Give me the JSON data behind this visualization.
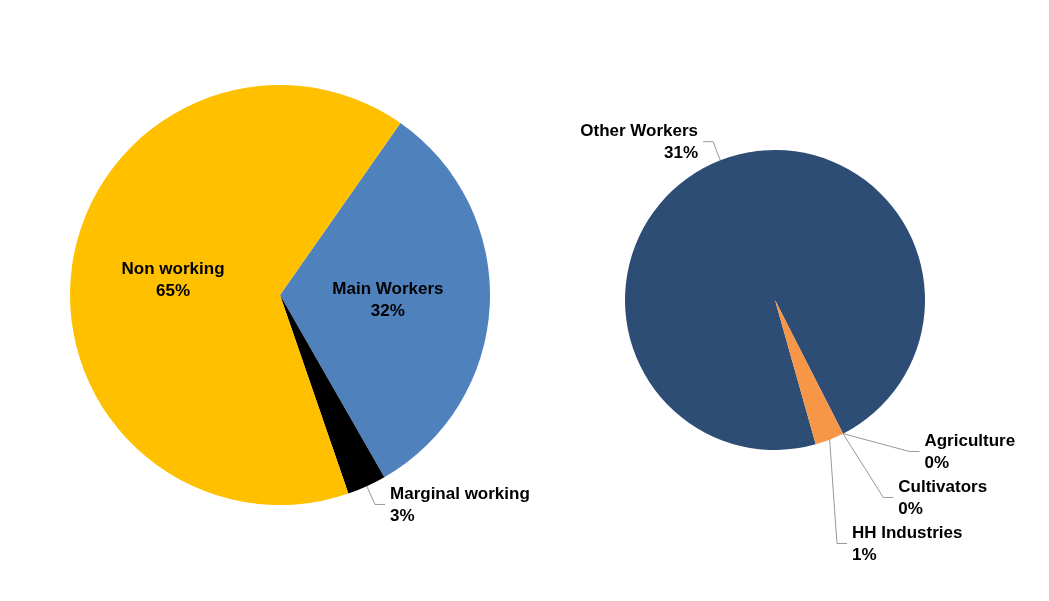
{
  "chart_data": [
    {
      "type": "pie",
      "categories": [
        "Main Workers",
        "Marginal working",
        "Non working"
      ],
      "values": [
        32,
        3,
        65
      ],
      "value_labels": [
        "32%",
        "3%",
        "65%"
      ],
      "colors": [
        "#4f81bd",
        "#000000",
        "#ffc000"
      ]
    },
    {
      "type": "pie",
      "categories": [
        "Other Workers",
        "HH Industries",
        "Agriculture",
        "Cultivators"
      ],
      "values": [
        31,
        1,
        0,
        0
      ],
      "value_labels": [
        "31%",
        "1%",
        "0%",
        "0%"
      ],
      "colors": [
        "#2e4d75",
        "#f79646",
        "#4bacc6",
        "#8064a2"
      ]
    }
  ]
}
